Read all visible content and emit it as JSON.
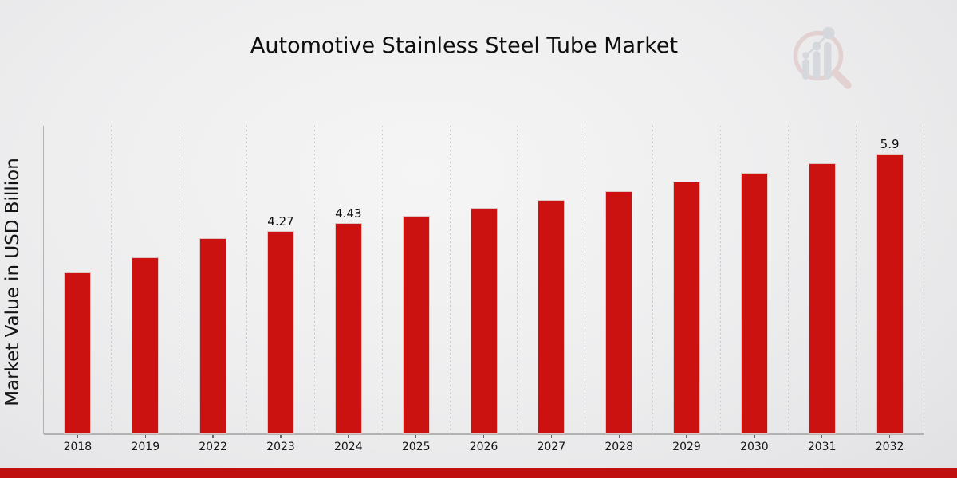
{
  "title": "Automotive Stainless Steel Tube Market",
  "colors": {
    "bar": "#cc1111",
    "accent_strip": "#c00f0f",
    "grid": "#c9c9c9",
    "spine": "#b2b2b2",
    "text": "#141414",
    "logo_pink": "#dcb9b9",
    "logo_gray": "#bfc5cc"
  },
  "chart_data": {
    "type": "bar",
    "title": "Automotive Stainless Steel Tube Market",
    "xlabel": "",
    "ylabel": "Market Value in USD Billion",
    "categories": [
      "2018",
      "2019",
      "2022",
      "2023",
      "2024",
      "2025",
      "2026",
      "2027",
      "2028",
      "2029",
      "2030",
      "2031",
      "2032"
    ],
    "values": [
      3.4,
      3.71,
      4.12,
      4.27,
      4.43,
      4.59,
      4.76,
      4.93,
      5.11,
      5.3,
      5.49,
      5.69,
      5.9
    ],
    "bar_labels": [
      "",
      "",
      "",
      "4.27",
      "4.43",
      "",
      "",
      "",
      "",
      "",
      "",
      "",
      "5.9"
    ],
    "ylim": [
      0,
      6.48
    ],
    "bar_color": "#cc1111",
    "grid": "vertical dotted lines between categories",
    "legend": "none",
    "y_tick_labels": "none"
  },
  "footer": {
    "accent_bar": ""
  },
  "watermark": {
    "icon": "magnifier-bar-chart-logo"
  }
}
